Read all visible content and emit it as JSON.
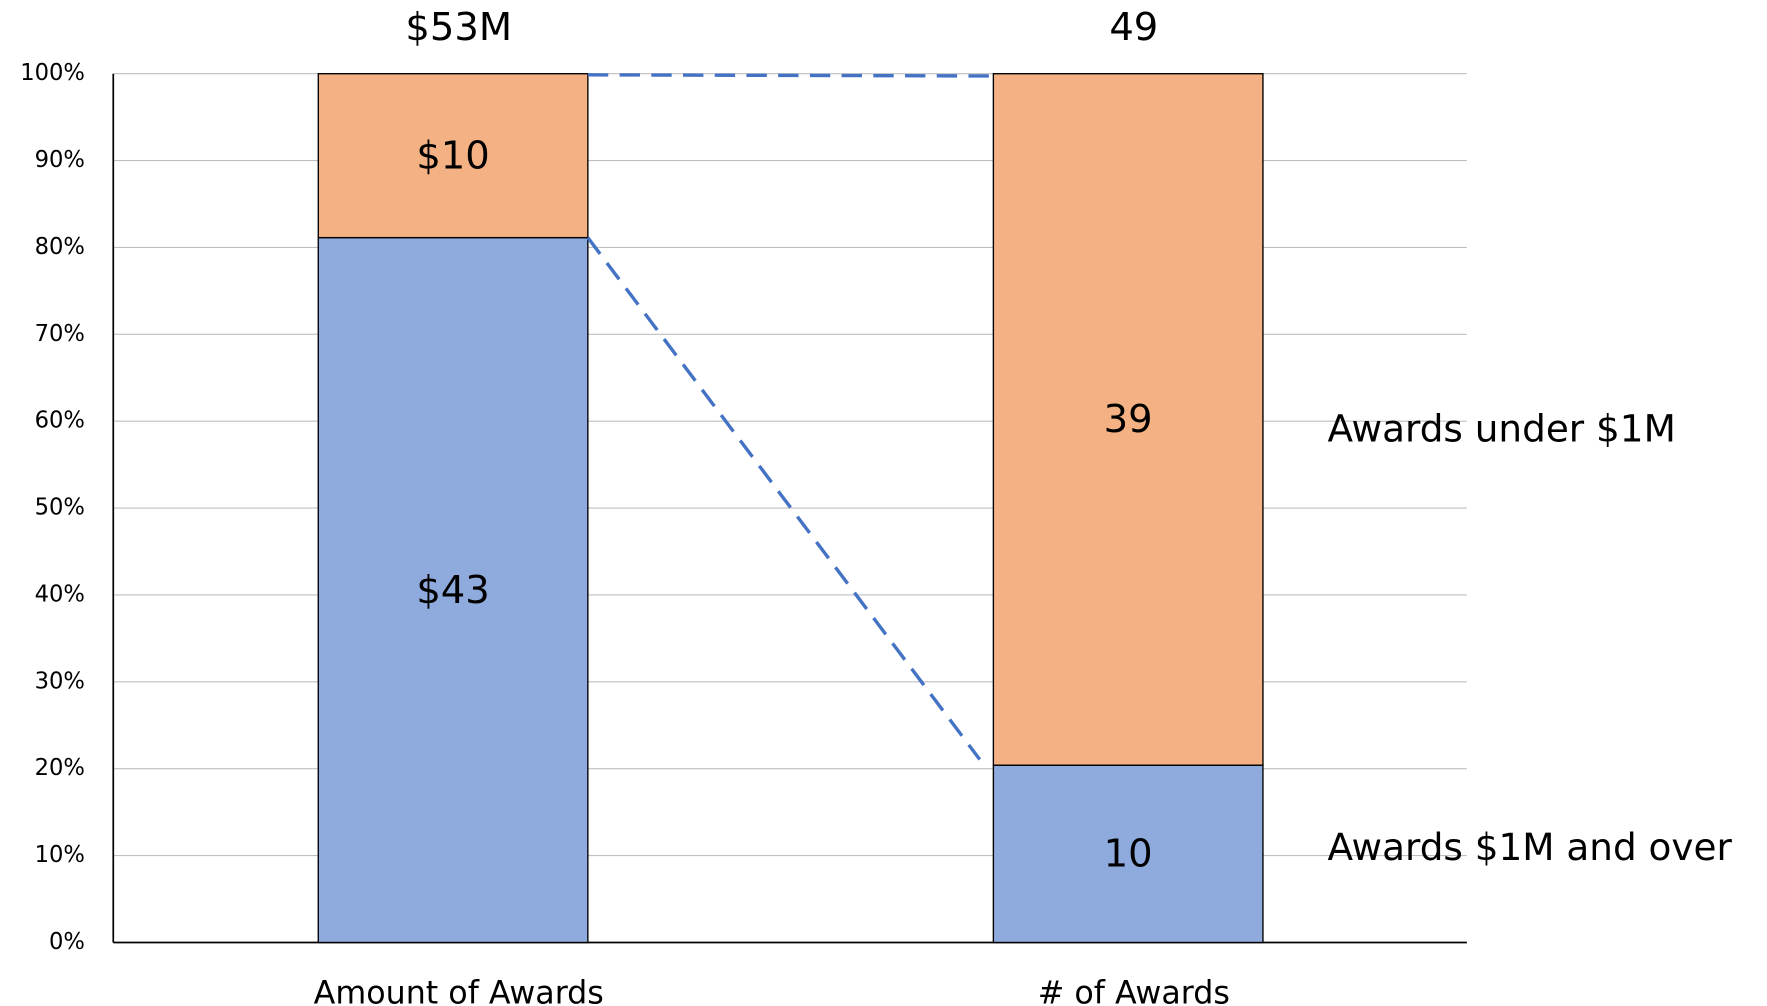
{
  "chart_data": {
    "type": "bar",
    "stacking": "percent",
    "categories": [
      "Amount of Awards",
      "# of Awards"
    ],
    "total_labels": [
      "$53M",
      "49"
    ],
    "series": [
      {
        "name": "Awards $1M and over",
        "color": "#8faadc",
        "values": [
          43,
          10
        ],
        "value_labels": [
          "$43",
          "10"
        ]
      },
      {
        "name": "Awards under $1M",
        "color": "#f4b183",
        "values": [
          10,
          39
        ],
        "value_labels": [
          "$10",
          "39"
        ]
      }
    ],
    "ylim": [
      0,
      100
    ],
    "yticks": [
      {
        "value": 0,
        "label": "0%"
      },
      {
        "value": 10,
        "label": "10%"
      },
      {
        "value": 20,
        "label": "20%"
      },
      {
        "value": 30,
        "label": "30%"
      },
      {
        "value": 40,
        "label": "40%"
      },
      {
        "value": 50,
        "label": "50%"
      },
      {
        "value": 60,
        "label": "60%"
      },
      {
        "value": 70,
        "label": "70%"
      },
      {
        "value": 80,
        "label": "80%"
      },
      {
        "value": 90,
        "label": "90%"
      },
      {
        "value": 100,
        "label": "100%"
      }
    ],
    "grid": true
  }
}
